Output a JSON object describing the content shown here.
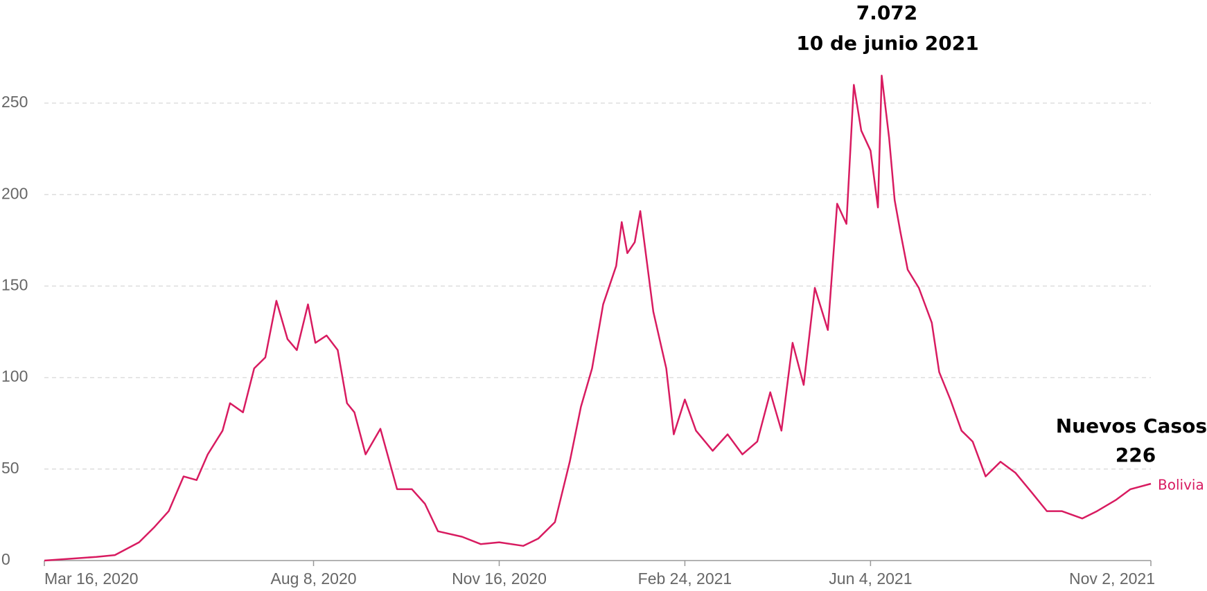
{
  "chart_data": {
    "type": "line",
    "annotations": [
      "7.072",
      "10 de junio 2021",
      "Nuevos Casos",
      "226"
    ],
    "x": [
      "2020-03-16",
      "2020-03-30",
      "2020-04-13",
      "2020-04-23",
      "2020-05-06",
      "2020-05-14",
      "2020-05-22",
      "2020-05-30",
      "2020-06-06",
      "2020-06-12",
      "2020-06-20",
      "2020-06-24",
      "2020-07-01",
      "2020-07-07",
      "2020-07-13",
      "2020-07-19",
      "2020-07-25",
      "2020-07-30",
      "2020-08-05",
      "2020-08-09",
      "2020-08-15",
      "2020-08-21",
      "2020-08-26",
      "2020-08-30",
      "2020-09-05",
      "2020-09-13",
      "2020-09-22",
      "2020-09-30",
      "2020-10-07",
      "2020-10-14",
      "2020-10-27",
      "2020-11-06",
      "2020-11-16",
      "2020-11-29",
      "2020-12-07",
      "2020-12-16",
      "2020-12-24",
      "2020-12-30",
      "2021-01-05",
      "2021-01-11",
      "2021-01-18",
      "2021-01-21",
      "2021-01-24",
      "2021-01-28",
      "2021-01-31",
      "2021-02-07",
      "2021-02-14",
      "2021-02-18",
      "2021-02-24",
      "2021-03-02",
      "2021-03-11",
      "2021-03-19",
      "2021-03-27",
      "2021-04-04",
      "2021-04-11",
      "2021-04-17",
      "2021-04-23",
      "2021-04-29",
      "2021-05-05",
      "2021-05-12",
      "2021-05-17",
      "2021-05-22",
      "2021-05-26",
      "2021-05-30",
      "2021-06-04",
      "2021-06-08",
      "2021-06-10",
      "2021-06-14",
      "2021-06-17",
      "2021-06-20",
      "2021-06-24",
      "2021-06-30",
      "2021-07-07",
      "2021-07-11",
      "2021-07-17",
      "2021-07-23",
      "2021-07-29",
      "2021-08-05",
      "2021-08-13",
      "2021-08-21",
      "2021-08-30",
      "2021-09-07",
      "2021-09-15",
      "2021-09-26",
      "2021-10-04",
      "2021-10-14",
      "2021-10-22",
      "2021-11-02"
    ],
    "series": [
      {
        "name": "Bolivia",
        "color": "#d81b60",
        "values": [
          0,
          1,
          2,
          3,
          10,
          18,
          27,
          46,
          44,
          58,
          71,
          86,
          81,
          105,
          111,
          142,
          121,
          115,
          140,
          119,
          123,
          115,
          86,
          81,
          58,
          72,
          39,
          39,
          31,
          16,
          13,
          9,
          10,
          8,
          12,
          21,
          54,
          84,
          105,
          140,
          161,
          185,
          168,
          174,
          191,
          136,
          105,
          69,
          88,
          71,
          60,
          69,
          58,
          65,
          92,
          71,
          119,
          96,
          149,
          126,
          195,
          184,
          260,
          235,
          224,
          193,
          265,
          231,
          197,
          180,
          159,
          149,
          130,
          103,
          88,
          71,
          65,
          46,
          54,
          48,
          37,
          27,
          27,
          23,
          27,
          33,
          39,
          42
        ]
      }
    ],
    "xlim": [
      "2020-03-16",
      "2021-11-02"
    ],
    "xticks": [
      {
        "value": "2020-03-16",
        "label": "Mar 16, 2020"
      },
      {
        "value": "2020-08-08",
        "label": "Aug 8, 2020"
      },
      {
        "value": "2020-11-16",
        "label": "Nov 16, 2020"
      },
      {
        "value": "2021-02-24",
        "label": "Feb 24, 2021"
      },
      {
        "value": "2021-06-04",
        "label": "Jun 4, 2021"
      },
      {
        "value": "2021-11-02",
        "label": "Nov 2, 2021"
      }
    ],
    "ylim": [
      0,
      265
    ],
    "yticks": [
      0,
      50,
      100,
      150,
      200,
      250
    ],
    "grid": true
  }
}
